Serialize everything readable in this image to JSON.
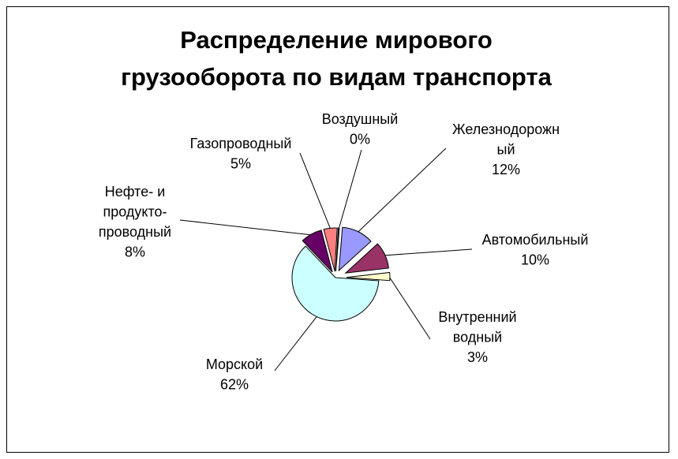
{
  "chart_data": {
    "type": "pie",
    "title_lines": [
      "Распределение мирового",
      "грузооборота по видам транспорта"
    ],
    "slices": [
      {
        "label_lines": [
          "Железнодорожн",
          "ый"
        ],
        "percent_text": "12%",
        "value": 12,
        "color": "#9999ff"
      },
      {
        "label_lines": [
          "Автомобильный"
        ],
        "percent_text": "10%",
        "value": 10,
        "color": "#993366"
      },
      {
        "label_lines": [
          "Внутренний",
          "водный"
        ],
        "percent_text": "3%",
        "value": 3,
        "color": "#ffffcc"
      },
      {
        "label_lines": [
          "Морской"
        ],
        "percent_text": "62%",
        "value": 62,
        "color": "#ccffff"
      },
      {
        "label_lines": [
          "Нефте- и",
          "продукто-",
          "проводный"
        ],
        "percent_text": "8%",
        "value": 8,
        "color": "#660066"
      },
      {
        "label_lines": [
          "Газопроводный"
        ],
        "percent_text": "5%",
        "value": 5,
        "color": "#ff8080"
      },
      {
        "label_lines": [
          "Воздушный"
        ],
        "percent_text": "0%",
        "value": 0.4,
        "color": "#0066cc"
      }
    ]
  }
}
